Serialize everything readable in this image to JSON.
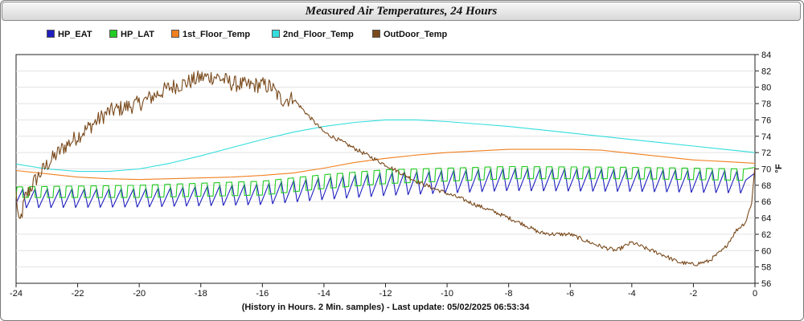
{
  "chart_data": {
    "type": "line",
    "title": "Measured Air Temperatures, 24 Hours",
    "xlabel": "(History in Hours. 2 Min. samples) - Last update: 05/02/2025 06:53:34",
    "ylabel": "°F",
    "xlim": [
      -24,
      0
    ],
    "ylim": [
      56,
      84
    ],
    "x_ticks": [
      -24,
      -22,
      -20,
      -18,
      -16,
      -14,
      -12,
      -10,
      -8,
      -6,
      -4,
      -2,
      0
    ],
    "y_ticks": [
      56,
      58,
      60,
      62,
      64,
      66,
      68,
      70,
      72,
      74,
      76,
      78,
      80,
      82,
      84
    ],
    "legend_position": "top",
    "grid": "horizontal",
    "series": [
      {
        "name": "HP_EAT",
        "color": "#1f1fbf",
        "pattern": {
          "type": "sawtooth",
          "cycle_hours": 0.4,
          "phase": 0.45,
          "low": [
            [
              -24,
              65.2
            ],
            [
              -20,
              65.3
            ],
            [
              -16,
              65.6
            ],
            [
              -14,
              66.2
            ],
            [
              -12,
              66.7
            ],
            [
              -8,
              67.3
            ],
            [
              -4,
              67.2
            ],
            [
              -0.3,
              67.0
            ]
          ],
          "high": [
            [
              -24,
              67.6
            ],
            [
              -20,
              67.6
            ],
            [
              -16,
              68.2
            ],
            [
              -14,
              69.0
            ],
            [
              -12,
              69.6
            ],
            [
              -8,
              70.1
            ],
            [
              -4,
              70.0
            ],
            [
              -0.3,
              69.8
            ]
          ]
        },
        "points": [
          [
            -24,
            66.8
          ],
          [
            -23,
            66.2
          ],
          [
            -22,
            66.5
          ],
          [
            -20,
            66.4
          ],
          [
            -18,
            66.6
          ],
          [
            -16,
            67.1
          ],
          [
            -14,
            67.6
          ],
          [
            -12,
            68.2
          ],
          [
            -10,
            68.5
          ],
          [
            -8,
            68.6
          ],
          [
            -6,
            68.4
          ],
          [
            -4,
            68.5
          ],
          [
            -2,
            68.3
          ],
          [
            -0.3,
            68.1
          ],
          [
            0,
            69.5
          ]
        ]
      },
      {
        "name": "HP_LAT",
        "color": "#22cc22",
        "pattern": {
          "type": "square",
          "cycle_hours": 0.4,
          "phase": 0.45,
          "low": [
            [
              -24,
              66.5
            ],
            [
              -20,
              66.5
            ],
            [
              -16,
              66.8
            ],
            [
              -14,
              67.6
            ],
            [
              -12,
              68.2
            ],
            [
              -8,
              68.8
            ],
            [
              -4,
              68.8
            ],
            [
              -0.3,
              68.6
            ]
          ],
          "high": [
            [
              -24,
              67.8
            ],
            [
              -20,
              68.0
            ],
            [
              -16,
              68.5
            ],
            [
              -14,
              69.3
            ],
            [
              -12,
              69.9
            ],
            [
              -8,
              70.3
            ],
            [
              -4,
              70.2
            ],
            [
              -0.3,
              70.0
            ]
          ]
        },
        "points": [
          [
            -24,
            67.2
          ],
          [
            -22,
            67.2
          ],
          [
            -20,
            67.3
          ],
          [
            -18,
            67.5
          ],
          [
            -16,
            67.7
          ],
          [
            -14,
            68.4
          ],
          [
            -12,
            69.0
          ],
          [
            -10,
            69.4
          ],
          [
            -8,
            69.5
          ],
          [
            -6,
            69.5
          ],
          [
            -4,
            69.5
          ],
          [
            -2,
            69.4
          ],
          [
            -0.3,
            69.3
          ],
          [
            0,
            70.2
          ]
        ]
      },
      {
        "name": "1st_Floor_Temp",
        "color": "#f08020",
        "points": [
          [
            -24,
            69.8
          ],
          [
            -23,
            69.4
          ],
          [
            -22,
            69.0
          ],
          [
            -21,
            68.8
          ],
          [
            -20,
            68.7
          ],
          [
            -19,
            68.8
          ],
          [
            -18,
            68.9
          ],
          [
            -17,
            69.0
          ],
          [
            -16,
            69.2
          ],
          [
            -15,
            69.5
          ],
          [
            -14,
            70.1
          ],
          [
            -13,
            70.8
          ],
          [
            -12,
            71.3
          ],
          [
            -11,
            71.7
          ],
          [
            -10,
            72.0
          ],
          [
            -9,
            72.2
          ],
          [
            -8,
            72.4
          ],
          [
            -7,
            72.4
          ],
          [
            -6,
            72.4
          ],
          [
            -5,
            72.3
          ],
          [
            -4,
            71.9
          ],
          [
            -3,
            71.5
          ],
          [
            -2,
            71.1
          ],
          [
            -1,
            70.9
          ],
          [
            0,
            70.7
          ]
        ]
      },
      {
        "name": "2nd_Floor_Temp",
        "color": "#33dddd",
        "points": [
          [
            -24,
            70.6
          ],
          [
            -23,
            70.0
          ],
          [
            -22,
            69.7
          ],
          [
            -21,
            69.7
          ],
          [
            -20,
            70.0
          ],
          [
            -19,
            70.7
          ],
          [
            -18,
            71.6
          ],
          [
            -17,
            72.6
          ],
          [
            -16,
            73.6
          ],
          [
            -15,
            74.5
          ],
          [
            -14,
            75.2
          ],
          [
            -13,
            75.7
          ],
          [
            -12,
            76.0
          ],
          [
            -11,
            76.0
          ],
          [
            -10,
            75.8
          ],
          [
            -9,
            75.5
          ],
          [
            -8,
            75.2
          ],
          [
            -7,
            74.8
          ],
          [
            -6,
            74.4
          ],
          [
            -5,
            74.0
          ],
          [
            -4,
            73.6
          ],
          [
            -3,
            73.2
          ],
          [
            -2,
            72.8
          ],
          [
            -1,
            72.4
          ],
          [
            0,
            72.0
          ]
        ]
      },
      {
        "name": "OutDoor_Temp",
        "color": "#7a4a1c",
        "jitter": 1.0,
        "points": [
          [
            -24,
            67.0
          ],
          [
            -23.9,
            63.0
          ],
          [
            -23.7,
            66.5
          ],
          [
            -23.4,
            68.5
          ],
          [
            -23.0,
            70.5
          ],
          [
            -22.5,
            72.5
          ],
          [
            -22.0,
            74.0
          ],
          [
            -21.5,
            75.5
          ],
          [
            -21.0,
            77.0
          ],
          [
            -20.5,
            77.5
          ],
          [
            -20.0,
            78.0
          ],
          [
            -19.5,
            79.0
          ],
          [
            -19.0,
            80.0
          ],
          [
            -18.5,
            80.5
          ],
          [
            -18.0,
            81.2
          ],
          [
            -17.5,
            81.3
          ],
          [
            -17.0,
            80.5
          ],
          [
            -16.5,
            80.2
          ],
          [
            -16.0,
            80.3
          ],
          [
            -15.7,
            80.0
          ],
          [
            -15.4,
            78.5
          ],
          [
            -15.0,
            78.6
          ],
          [
            -14.5,
            76.5
          ],
          [
            -14.0,
            74.5
          ],
          [
            -13.5,
            73.5
          ],
          [
            -13.0,
            72.5
          ],
          [
            -12.5,
            71.5
          ],
          [
            -12.0,
            70.5
          ],
          [
            -11.5,
            69.5
          ],
          [
            -11.0,
            68.5
          ],
          [
            -10.5,
            67.7
          ],
          [
            -10.0,
            67.0
          ],
          [
            -9.5,
            66.3
          ],
          [
            -9.0,
            65.5
          ],
          [
            -8.5,
            64.8
          ],
          [
            -8.0,
            64.0
          ],
          [
            -7.5,
            63.2
          ],
          [
            -7.0,
            62.2
          ],
          [
            -6.5,
            62.0
          ],
          [
            -6.0,
            62.0
          ],
          [
            -5.5,
            61.2
          ],
          [
            -5.0,
            60.5
          ],
          [
            -4.5,
            60.0
          ],
          [
            -4.0,
            61.0
          ],
          [
            -3.5,
            60.2
          ],
          [
            -3.0,
            59.5
          ],
          [
            -2.5,
            58.6
          ],
          [
            -2.0,
            58.3
          ],
          [
            -1.5,
            58.7
          ],
          [
            -1.0,
            60.2
          ],
          [
            -0.6,
            62.5
          ],
          [
            -0.3,
            63.5
          ],
          [
            -0.1,
            66.0
          ],
          [
            0,
            70.5
          ]
        ]
      }
    ]
  }
}
